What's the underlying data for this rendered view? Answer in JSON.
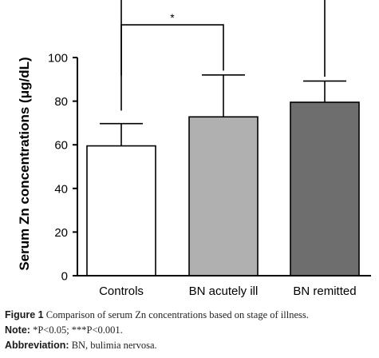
{
  "chart_data": {
    "type": "bar",
    "categories": [
      "Controls",
      "BN acutely ill",
      "BN remitted"
    ],
    "values": [
      59.5,
      72.8,
      79.5
    ],
    "error_upper": [
      69.7,
      92.0,
      89.2
    ],
    "colors": [
      "#ffffff",
      "#b0b0b0",
      "#6e6e6e"
    ],
    "ylabel": "Serum Zn concentrations (μg/dL)",
    "xlabel": "",
    "ylim": [
      0,
      100
    ],
    "yticks": [
      "0",
      "20",
      "40",
      "60",
      "80",
      "100"
    ],
    "grid": false,
    "significance": [
      {
        "from": "Controls",
        "to": "BN acutely ill",
        "label": "*"
      },
      {
        "from": "Controls",
        "to": "BN remitted",
        "label": "***"
      }
    ]
  },
  "caption": {
    "figure_label": "Figure 1",
    "figure_text": " Comparison of serum Zn concentrations based on stage of illness.",
    "note_label": "Note:",
    "note_text": " *P<0.05; ***P<0.001.",
    "abbr_label": "Abbreviation:",
    "abbr_text": " BN, bulimia nervosa."
  }
}
